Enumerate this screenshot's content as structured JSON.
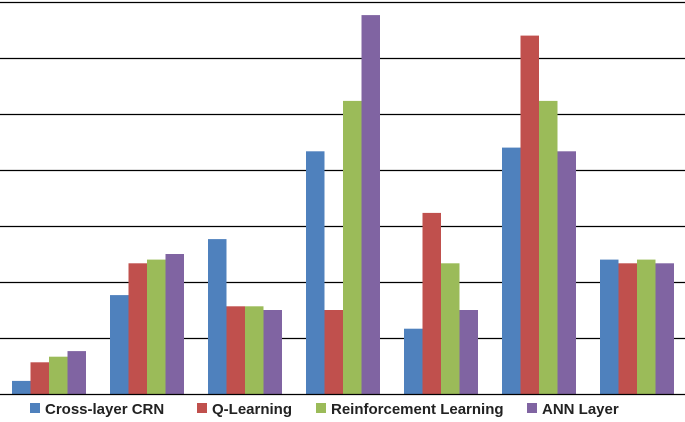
{
  "chart_data": {
    "type": "bar",
    "categories": [
      "",
      "",
      "",
      "",
      "",
      "",
      ""
    ],
    "series": [
      {
        "name": "Cross-layer CRN",
        "color": "#4F81BD",
        "values": [
          0.7,
          5.3,
          8.3,
          13.0,
          3.5,
          13.2,
          7.2
        ]
      },
      {
        "name": "Q-Learning",
        "color": "#C0504D",
        "values": [
          1.7,
          7.0,
          4.7,
          4.5,
          9.7,
          19.2,
          7.0
        ]
      },
      {
        "name": "Reinforcement Learning",
        "color": "#9BBB59",
        "values": [
          2.0,
          7.2,
          4.7,
          15.7,
          7.0,
          15.7,
          7.2
        ]
      },
      {
        "name": "ANN Layer",
        "color": "#8064A2",
        "values": [
          2.3,
          7.5,
          4.5,
          20.3,
          4.5,
          13.0,
          7.0
        ]
      }
    ],
    "ylim": [
      0,
      21
    ],
    "gridlines": [
      3,
      6,
      9,
      12,
      15,
      18,
      21
    ],
    "grid": true,
    "legend_position": "bottom"
  }
}
